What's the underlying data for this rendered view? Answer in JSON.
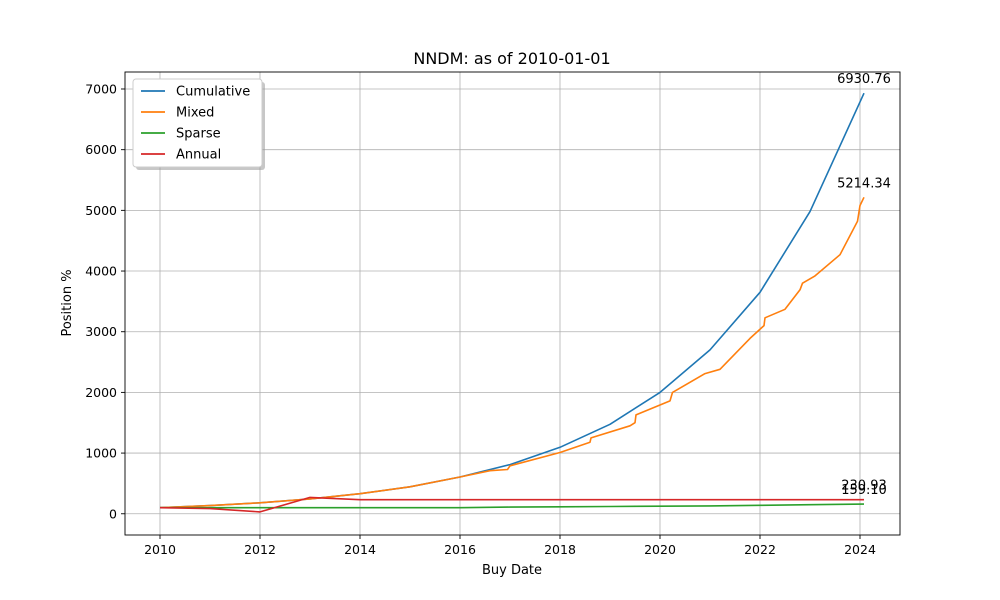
{
  "chart_data": {
    "type": "line",
    "title": "NNDM: as of 2010-01-01",
    "xlabel": "Buy Date",
    "ylabel": "Position %",
    "xlim": [
      2009.3,
      2024.8
    ],
    "ylim": [
      -350,
      7280
    ],
    "x_ticks": [
      2010,
      2012,
      2014,
      2016,
      2018,
      2020,
      2022,
      2024
    ],
    "x_tick_labels": [
      "2010",
      "2012",
      "2014",
      "2016",
      "2018",
      "2020",
      "2022",
      "2024"
    ],
    "y_ticks": [
      0,
      1000,
      2000,
      3000,
      4000,
      5000,
      6000,
      7000
    ],
    "y_tick_labels": [
      "0",
      "1000",
      "2000",
      "3000",
      "4000",
      "5000",
      "6000",
      "7000"
    ],
    "grid": true,
    "legend_position": "top-left",
    "series": [
      {
        "name": "Cumulative",
        "color": "#1f77b4",
        "x": [
          2010,
          2011,
          2012,
          2013,
          2014,
          2015,
          2016,
          2017,
          2018,
          2019,
          2020,
          2021,
          2022,
          2023,
          2024.08
        ],
        "y": [
          100,
          135,
          180,
          245,
          330,
          445,
          605,
          810,
          1095,
          1475,
          2000,
          2700,
          3650,
          4980,
          6930.76
        ]
      },
      {
        "name": "Mixed",
        "color": "#ff7f0e",
        "x": [
          2010,
          2011,
          2012,
          2013,
          2014,
          2015,
          2016,
          2016.6,
          2016.95,
          2017.0,
          2018,
          2018.6,
          2018.62,
          2019.4,
          2019.5,
          2019.52,
          2020.2,
          2020.25,
          2020.9,
          2021.2,
          2021.8,
          2022.08,
          2022.1,
          2022.5,
          2022.8,
          2022.85,
          2023.1,
          2023.6,
          2023.95,
          2024.0,
          2024.08
        ],
        "y": [
          100,
          135,
          180,
          245,
          330,
          445,
          605,
          710,
          730,
          790,
          1010,
          1180,
          1250,
          1450,
          1500,
          1630,
          1860,
          2000,
          2310,
          2380,
          2890,
          3100,
          3230,
          3370,
          3690,
          3800,
          3920,
          4270,
          4820,
          5080,
          5214.34
        ]
      },
      {
        "name": "Sparse",
        "color": "#2ca02c",
        "x": [
          2010,
          2012,
          2014,
          2016,
          2017,
          2018,
          2019,
          2020,
          2021,
          2022,
          2023,
          2024.08
        ],
        "y": [
          100,
          100,
          100,
          100,
          110,
          115,
          120,
          125,
          130,
          140,
          150,
          159.1
        ]
      },
      {
        "name": "Annual",
        "color": "#d62728",
        "x": [
          2010,
          2011,
          2012,
          2013,
          2014,
          2016,
          2018,
          2020,
          2022,
          2024.08
        ],
        "y": [
          100,
          85,
          30,
          270,
          230.93,
          230.93,
          230.93,
          230.93,
          230.93,
          230.93
        ]
      }
    ],
    "annotations": [
      {
        "text": "6930.76",
        "x": 2024.08,
        "y": 6930.76
      },
      {
        "text": "5214.34",
        "x": 2024.08,
        "y": 5214.34
      },
      {
        "text": "230.93",
        "x": 2024.08,
        "y": 230.93
      },
      {
        "text": "159.10",
        "x": 2024.08,
        "y": 159.1
      }
    ]
  }
}
